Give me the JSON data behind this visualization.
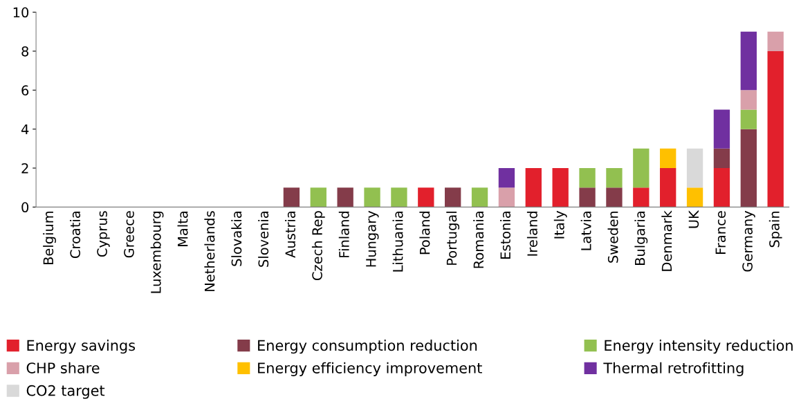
{
  "chart_data": {
    "type": "bar",
    "stacked": true,
    "categories": [
      "Belgium",
      "Croatia",
      "Cyprus",
      "Greece",
      "Luxembourg",
      "Malta",
      "Netherlands",
      "Slovakia",
      "Slovenia",
      "Austria",
      "Czech Rep",
      "Finland",
      "Hungary",
      "Lithuania",
      "Poland",
      "Portugal",
      "Romania",
      "Estonia",
      "Ireland",
      "Italy",
      "Latvia",
      "Sweden",
      "Bulgaria",
      "Denmark",
      "UK",
      "France",
      "Germany",
      "Spain"
    ],
    "series": [
      {
        "name": "Energy savings",
        "color": "#e2202c",
        "values": [
          0,
          0,
          0,
          0,
          0,
          0,
          0,
          0,
          0,
          0,
          0,
          0,
          0,
          0,
          1,
          0,
          0,
          0,
          2,
          2,
          0,
          0,
          1,
          2,
          0,
          2,
          0,
          8
        ]
      },
      {
        "name": "Energy consumption reduction",
        "color": "#843c4a",
        "values": [
          0,
          0,
          0,
          0,
          0,
          0,
          0,
          0,
          0,
          1,
          0,
          1,
          0,
          0,
          0,
          1,
          0,
          0,
          0,
          0,
          1,
          1,
          0,
          0,
          0,
          1,
          4,
          0
        ]
      },
      {
        "name": "Energy intensity reduction",
        "color": "#92c050",
        "values": [
          0,
          0,
          0,
          0,
          0,
          0,
          0,
          0,
          0,
          0,
          1,
          0,
          1,
          1,
          0,
          0,
          1,
          0,
          0,
          0,
          1,
          1,
          2,
          0,
          0,
          0,
          1,
          0
        ]
      },
      {
        "name": "CHP share",
        "color": "#d9a0aa",
        "values": [
          0,
          0,
          0,
          0,
          0,
          0,
          0,
          0,
          0,
          0,
          0,
          0,
          0,
          0,
          0,
          0,
          0,
          1,
          0,
          0,
          0,
          0,
          0,
          0,
          0,
          0,
          1,
          1
        ]
      },
      {
        "name": "Energy efficiency improvement",
        "color": "#ffc000",
        "values": [
          0,
          0,
          0,
          0,
          0,
          0,
          0,
          0,
          0,
          0,
          0,
          0,
          0,
          0,
          0,
          0,
          0,
          0,
          0,
          0,
          0,
          0,
          0,
          1,
          1,
          0,
          0,
          0
        ]
      },
      {
        "name": "Thermal retrofitting",
        "color": "#7030a0",
        "values": [
          0,
          0,
          0,
          0,
          0,
          0,
          0,
          0,
          0,
          0,
          0,
          0,
          0,
          0,
          0,
          0,
          0,
          1,
          0,
          0,
          0,
          0,
          0,
          0,
          0,
          2,
          3,
          0
        ]
      },
      {
        "name": "CO2 target",
        "color": "#d9d9d9",
        "values": [
          0,
          0,
          0,
          0,
          0,
          0,
          0,
          0,
          0,
          0,
          0,
          0,
          0,
          0,
          0,
          0,
          0,
          0,
          0,
          0,
          0,
          0,
          0,
          0,
          2,
          0,
          0,
          0
        ]
      }
    ],
    "ylim": [
      0,
      10
    ],
    "yticks": [
      0,
      2,
      4,
      6,
      8,
      10
    ],
    "grid": false,
    "legend": "bottom"
  }
}
